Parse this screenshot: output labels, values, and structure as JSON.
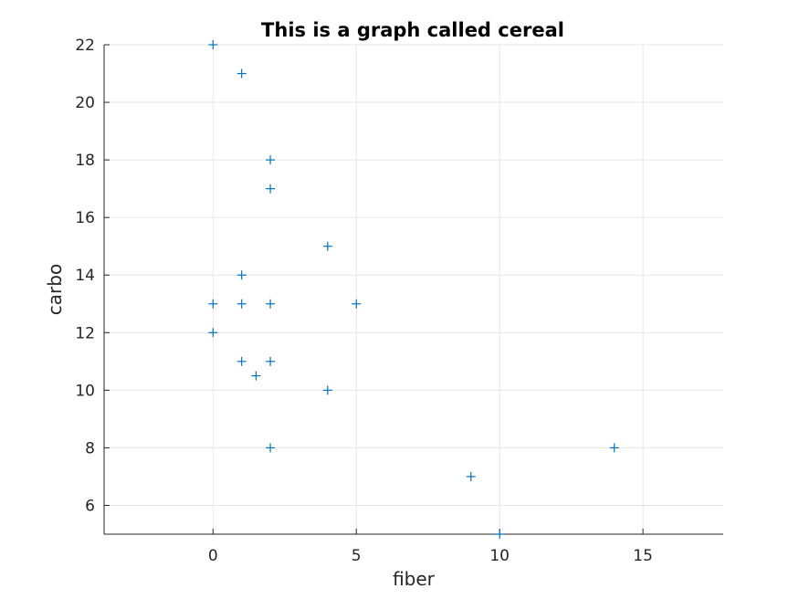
{
  "chart_data": {
    "type": "scatter",
    "title": "This is a graph called cereal",
    "xlabel": "fiber",
    "ylabel": "carbo",
    "xlim": [
      -3.8,
      17.8
    ],
    "ylim": [
      5,
      22
    ],
    "xticks": [
      0,
      5,
      10,
      15
    ],
    "yticks": [
      6,
      8,
      10,
      12,
      14,
      16,
      18,
      20,
      22
    ],
    "grid": true,
    "marker": "+",
    "color": "#0072bd",
    "series": [
      {
        "name": "cereal",
        "x": [
          0,
          1,
          2,
          2,
          4,
          1,
          0,
          1,
          2,
          5,
          0,
          1,
          2,
          1.5,
          4,
          2,
          9,
          14,
          10
        ],
        "y": [
          22,
          21,
          18,
          17,
          15,
          14,
          13,
          13,
          13,
          13,
          12,
          11,
          11,
          10.5,
          10,
          8,
          7,
          8,
          5
        ]
      }
    ]
  }
}
